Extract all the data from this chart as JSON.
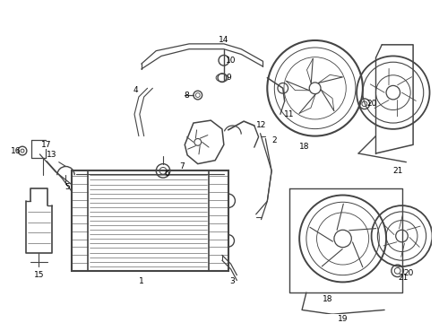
{
  "background_color": "#ffffff",
  "line_color": "#444444",
  "label_color": "#000000",
  "figsize": [
    4.9,
    3.6
  ],
  "dpi": 100,
  "label_fontsize": 6.5,
  "lw_main": 1.0,
  "lw_thin": 0.5
}
